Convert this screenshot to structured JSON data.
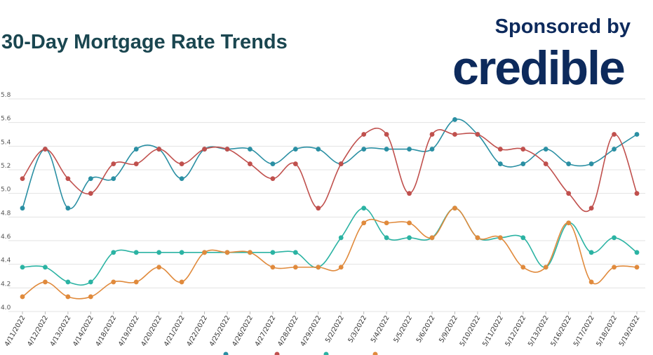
{
  "header": {
    "title": "30-Day Mortgage Rate Trends",
    "sponsor_label": "Sponsored by",
    "sponsor_brand": "credible"
  },
  "chart_data": {
    "type": "line",
    "xlabel": "",
    "ylabel": "",
    "ylim": [
      4.0,
      5.8
    ],
    "yticks": [
      "4.0",
      "4.2",
      "4.4",
      "4.6",
      "4.8",
      "5.0",
      "5.2",
      "5.4",
      "5.6",
      "5.8"
    ],
    "grid": true,
    "categories": [
      "4/11/2022",
      "4/12/2022",
      "4/13/2022",
      "4/14/2022",
      "4/18/2022",
      "4/19/2022",
      "4/20/2022",
      "4/21/2022",
      "4/22/2022",
      "4/25/2022",
      "4/26/2022",
      "4/27/2022",
      "4/28/2022",
      "4/29/2022",
      "5/2/2022",
      "5/3/2022",
      "5/4/2022",
      "5/5/2022",
      "5/6/2022",
      "5/9/2022",
      "5/10/2022",
      "5/11/2022",
      "5/12/2022",
      "5/13/2022",
      "5/16/2022",
      "5/17/2022",
      "5/18/2022",
      "5/19/2022"
    ],
    "series": [
      {
        "color": "#2a8fa3",
        "values": [
          4.875,
          5.375,
          4.875,
          5.125,
          5.125,
          5.375,
          5.375,
          5.125,
          5.375,
          5.375,
          5.375,
          5.25,
          5.375,
          5.375,
          5.25,
          5.375,
          5.375,
          5.375,
          5.375,
          5.625,
          5.5,
          5.25,
          5.25,
          5.375,
          5.25,
          5.25,
          5.375,
          5.5
        ]
      },
      {
        "color": "#c0504d",
        "values": [
          5.125,
          5.375,
          5.125,
          5.0,
          5.25,
          5.25,
          5.375,
          5.25,
          5.375,
          5.375,
          5.25,
          5.125,
          5.25,
          4.875,
          5.25,
          5.5,
          5.5,
          5.0,
          5.5,
          5.5,
          5.5,
          5.375,
          5.375,
          5.25,
          5.0,
          4.875,
          5.5,
          5.0
        ]
      },
      {
        "color": "#2bb3a3",
        "values": [
          4.375,
          4.375,
          4.25,
          4.25,
          4.5,
          4.5,
          4.5,
          4.5,
          4.5,
          4.5,
          4.5,
          4.5,
          4.5,
          4.375,
          4.625,
          4.875,
          4.625,
          4.625,
          4.625,
          4.875,
          4.625,
          4.625,
          4.625,
          4.375,
          4.75,
          4.5,
          4.625,
          4.5
        ]
      },
      {
        "color": "#e08a3c",
        "values": [
          4.125,
          4.25,
          4.125,
          4.125,
          4.25,
          4.25,
          4.375,
          4.25,
          4.5,
          4.5,
          4.5,
          4.375,
          4.375,
          4.375,
          4.375,
          4.75,
          4.75,
          4.75,
          4.625,
          4.875,
          4.625,
          4.625,
          4.375,
          4.375,
          4.75,
          4.25,
          4.375,
          4.375
        ]
      }
    ]
  }
}
